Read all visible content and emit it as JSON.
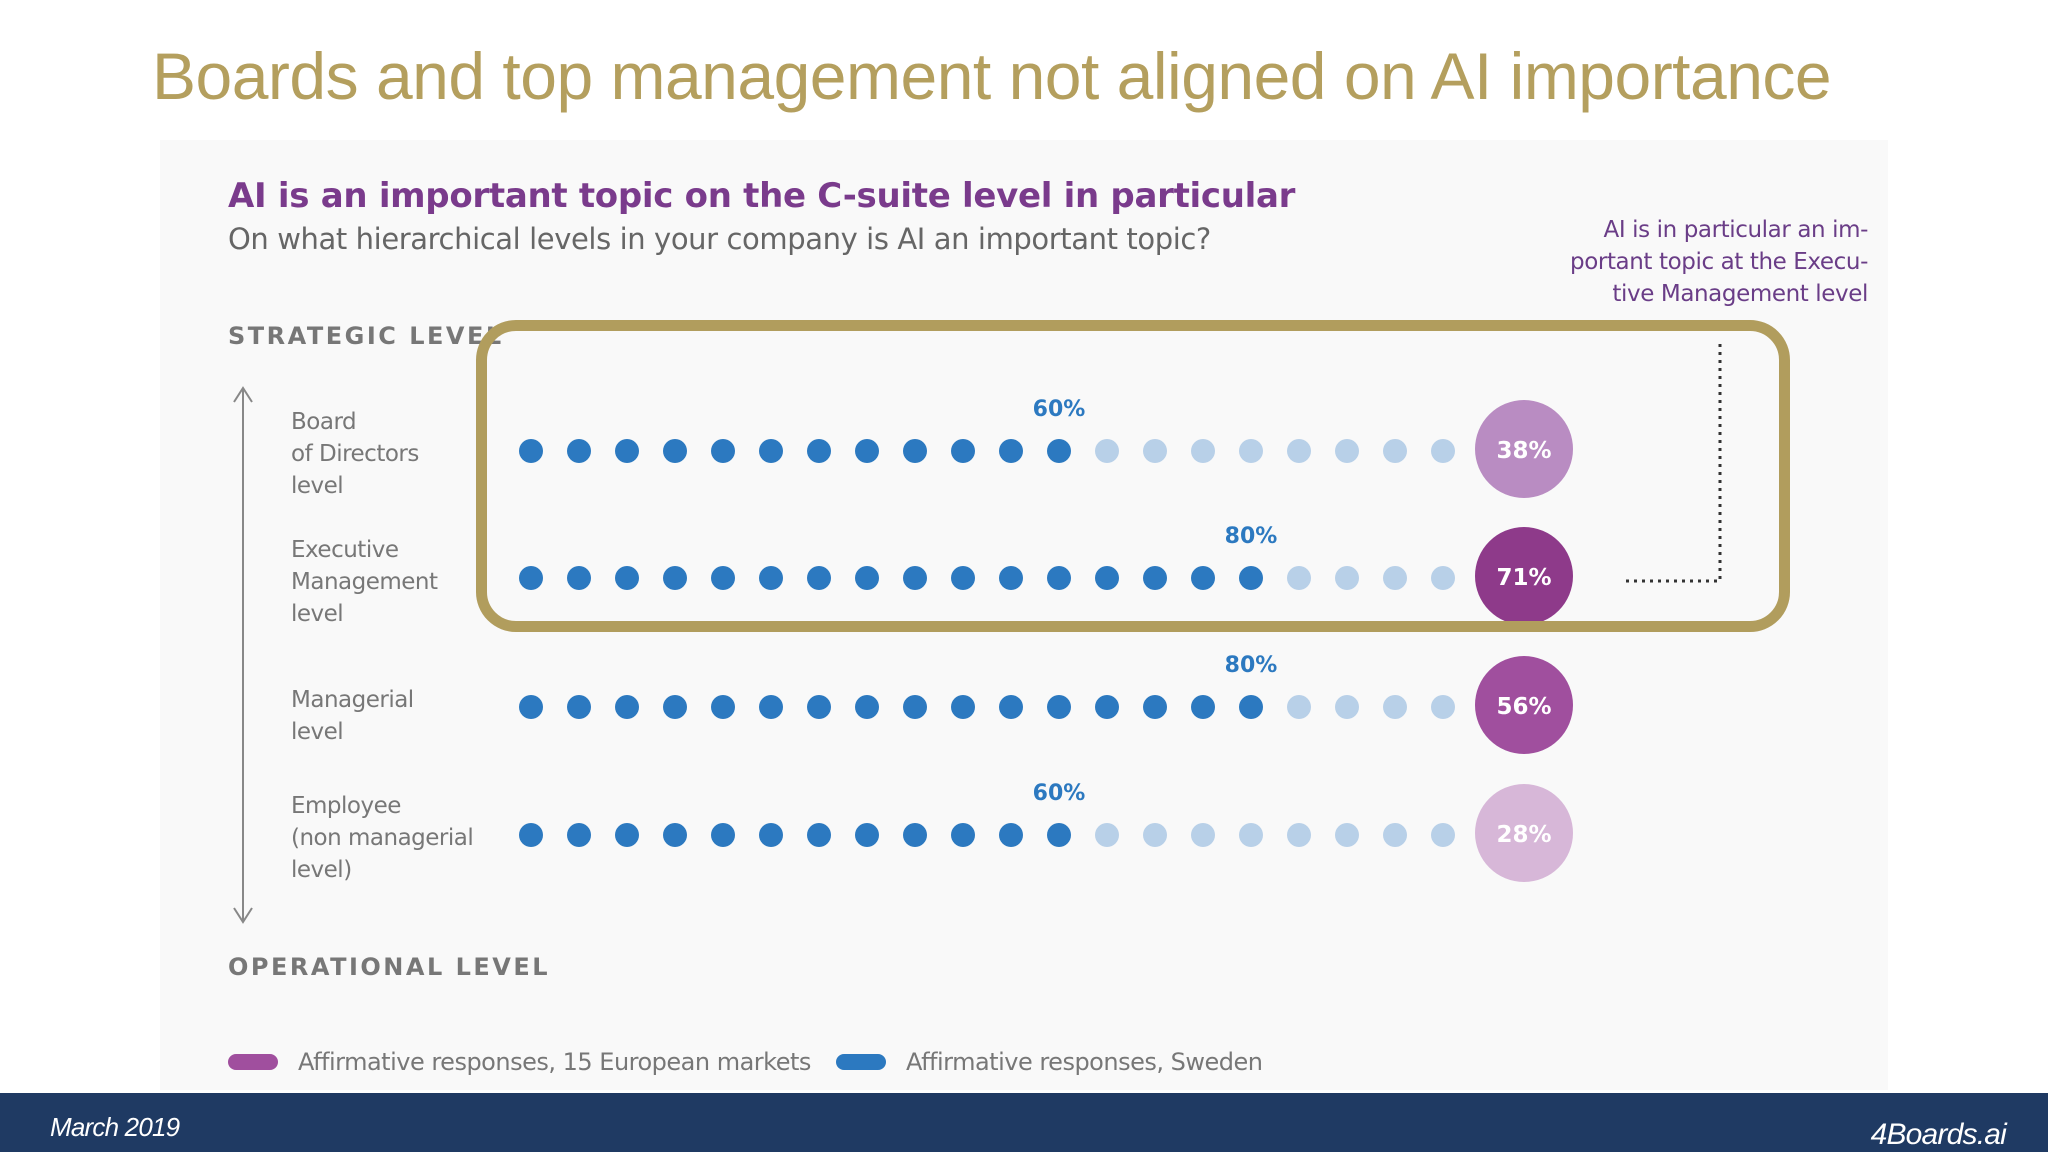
{
  "slide": {
    "title": "Boards and top management not aligned on AI importance"
  },
  "footer": {
    "date": "March 2019",
    "brand": "4Boards.ai"
  },
  "chart_data": {
    "type": "dot-matrix",
    "title": "AI is an important  topic on the C-suite level in particular",
    "subtitle": "On what hierarchical levels in your company is AI an important topic?",
    "axis_top_label": "STRATEGIC LEVEL",
    "axis_bottom_label": "OPERATIONAL LEVEL",
    "annotation": "AI is in particular an im-\nportant topic at the Execu-\ntive Management level",
    "dots_per_row": 20,
    "categories": [
      "Board\nof Directors\nlevel",
      "Executive\nManagement\nlevel",
      "Managerial\nlevel",
      "Employee\n(non managerial\nlevel)"
    ],
    "series": [
      {
        "name": "Affirmative responses, Sweden",
        "values": [
          60,
          80,
          80,
          60
        ],
        "labels": [
          "60%",
          "80%",
          "80%",
          "60%"
        ],
        "color": "#2c79c0",
        "light_color": "#b8d0e8"
      },
      {
        "name": "Affirmative responses, 15 European markets",
        "values": [
          38,
          71,
          56,
          28
        ],
        "labels": [
          "38%",
          "71%",
          "56%",
          "28%"
        ],
        "colors": [
          "#b98cc2",
          "#8e3a8a",
          "#a04f9e",
          "#d7b7d8"
        ]
      }
    ],
    "highlighted_categories": [
      "Board\nof Directors\nlevel",
      "Executive\nManagement\nlevel"
    ],
    "legend_position": "bottom-left",
    "legend_color": "#a04f9e"
  }
}
